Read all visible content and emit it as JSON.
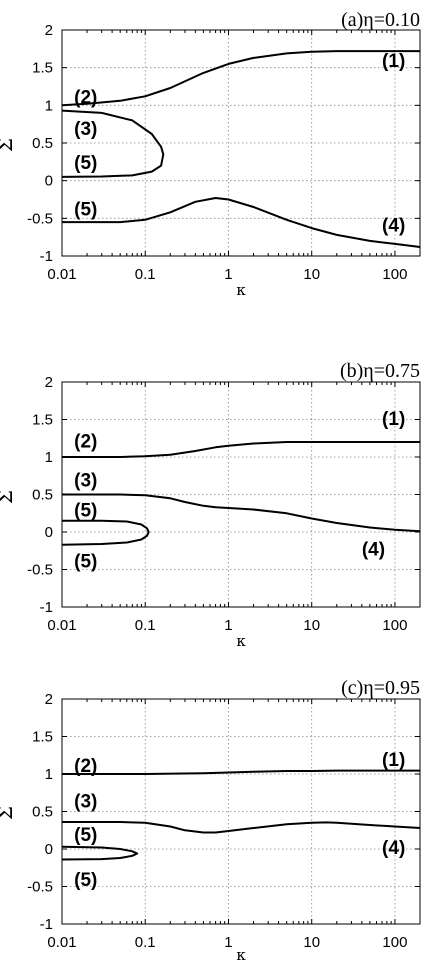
{
  "chart_data": [
    {
      "type": "line",
      "title": "(a)η=0.10",
      "xlabel": "κ",
      "ylabel": "Σ",
      "xscale": "log",
      "xlim": [
        0.01,
        200
      ],
      "ylim": [
        -1,
        2
      ],
      "xticks": [
        0.01,
        0.1,
        1,
        10,
        100
      ],
      "xtick_labels": [
        "0.01",
        "0.1",
        "1",
        "10",
        "100"
      ],
      "yticks": [
        -1,
        -0.5,
        0,
        0.5,
        1,
        1.5,
        2
      ],
      "ytick_labels": [
        "-1",
        "-0.5",
        "0",
        "0.5",
        "1",
        "1.5",
        "2"
      ],
      "grid": true,
      "series": [
        {
          "x": [
            0.01,
            0.02,
            0.05,
            0.1,
            0.2,
            0.5,
            1,
            2,
            5,
            10,
            20,
            50,
            100,
            200
          ],
          "y": [
            1.0,
            1.02,
            1.06,
            1.12,
            1.23,
            1.43,
            1.55,
            1.63,
            1.69,
            1.71,
            1.72,
            1.72,
            1.72,
            1.72
          ]
        },
        {
          "x": [
            0.01,
            0.03,
            0.07,
            0.12,
            0.155,
            0.165,
            0.155,
            0.12,
            0.07,
            0.03,
            0.01
          ],
          "y": [
            0.93,
            0.9,
            0.8,
            0.62,
            0.45,
            0.35,
            0.2,
            0.12,
            0.07,
            0.055,
            0.05
          ]
        },
        {
          "x": [
            0.01,
            0.05,
            0.1,
            0.2,
            0.4,
            0.7,
            1,
            2,
            5,
            10,
            20,
            50,
            100,
            200
          ],
          "y": [
            -0.55,
            -0.55,
            -0.52,
            -0.42,
            -0.28,
            -0.23,
            -0.25,
            -0.35,
            -0.52,
            -0.63,
            -0.72,
            -0.8,
            -0.84,
            -0.88
          ]
        }
      ],
      "annotations": [
        {
          "text": "(1)",
          "x": 70,
          "y": 1.6
        },
        {
          "text": "(2)",
          "x": 0.014,
          "y": 1.12
        },
        {
          "text": "(3)",
          "x": 0.014,
          "y": 0.7
        },
        {
          "text": "(5)",
          "x": 0.014,
          "y": 0.25
        },
        {
          "text": "(5)",
          "x": 0.014,
          "y": -0.37
        },
        {
          "text": "(4)",
          "x": 70,
          "y": -0.58
        }
      ]
    },
    {
      "type": "line",
      "title": "(b)η=0.75",
      "xlabel": "κ",
      "ylabel": "Σ",
      "xscale": "log",
      "xlim": [
        0.01,
        200
      ],
      "ylim": [
        -1,
        2
      ],
      "xticks": [
        0.01,
        0.1,
        1,
        10,
        100
      ],
      "xtick_labels": [
        "0.01",
        "0.1",
        "1",
        "10",
        "100"
      ],
      "yticks": [
        -1,
        -0.5,
        0,
        0.5,
        1,
        1.5,
        2
      ],
      "ytick_labels": [
        "-1",
        "-0.5",
        "0",
        "0.5",
        "1",
        "1.5",
        "2"
      ],
      "grid": true,
      "series": [
        {
          "x": [
            0.01,
            0.05,
            0.1,
            0.2,
            0.4,
            0.7,
            1,
            2,
            5,
            10,
            20,
            50,
            100,
            200
          ],
          "y": [
            1.0,
            1.0,
            1.01,
            1.03,
            1.08,
            1.13,
            1.15,
            1.18,
            1.2,
            1.2,
            1.2,
            1.2,
            1.2,
            1.2
          ]
        },
        {
          "x": [
            0.01,
            0.05,
            0.1,
            0.2,
            0.3,
            0.5,
            0.7,
            1,
            2,
            5,
            10,
            20,
            50,
            100,
            200
          ],
          "y": [
            0.5,
            0.5,
            0.49,
            0.45,
            0.4,
            0.35,
            0.33,
            0.32,
            0.3,
            0.25,
            0.18,
            0.12,
            0.06,
            0.03,
            0.01
          ]
        },
        {
          "x": [
            0.01,
            0.03,
            0.06,
            0.09,
            0.105,
            0.11,
            0.105,
            0.09,
            0.06,
            0.03,
            0.01
          ],
          "y": [
            0.15,
            0.15,
            0.14,
            0.1,
            0.05,
            0.0,
            -0.05,
            -0.1,
            -0.14,
            -0.16,
            -0.17
          ]
        }
      ],
      "annotations": [
        {
          "text": "(1)",
          "x": 70,
          "y": 1.52
        },
        {
          "text": "(2)",
          "x": 0.014,
          "y": 1.22
        },
        {
          "text": "(3)",
          "x": 0.014,
          "y": 0.7
        },
        {
          "text": "(5)",
          "x": 0.014,
          "y": 0.3
        },
        {
          "text": "(5)",
          "x": 0.014,
          "y": -0.38
        },
        {
          "text": "(4)",
          "x": 40,
          "y": -0.22
        }
      ]
    },
    {
      "type": "line",
      "title": "(c)η=0.95",
      "xlabel": "κ",
      "ylabel": "Σ",
      "xscale": "log",
      "xlim": [
        0.01,
        200
      ],
      "ylim": [
        -1,
        2
      ],
      "xticks": [
        0.01,
        0.1,
        1,
        10,
        100
      ],
      "xtick_labels": [
        "0.01",
        "0.1",
        "1",
        "10",
        "100"
      ],
      "yticks": [
        -1,
        -0.5,
        0,
        0.5,
        1,
        1.5,
        2
      ],
      "ytick_labels": [
        "-1",
        "-0.5",
        "0",
        "0.5",
        "1",
        "1.5",
        "2"
      ],
      "grid": true,
      "series": [
        {
          "x": [
            0.01,
            0.1,
            0.5,
            1,
            2,
            5,
            10,
            20,
            50,
            100,
            200
          ],
          "y": [
            1.0,
            1.0,
            1.01,
            1.02,
            1.03,
            1.04,
            1.04,
            1.045,
            1.045,
            1.045,
            1.045
          ]
        },
        {
          "x": [
            0.01,
            0.05,
            0.1,
            0.2,
            0.3,
            0.5,
            0.7,
            1,
            2,
            5,
            10,
            15,
            20,
            50,
            100,
            200
          ],
          "y": [
            0.36,
            0.36,
            0.35,
            0.3,
            0.25,
            0.22,
            0.22,
            0.24,
            0.28,
            0.33,
            0.35,
            0.355,
            0.35,
            0.32,
            0.3,
            0.28
          ]
        },
        {
          "x": [
            0.01,
            0.03,
            0.05,
            0.07,
            0.08,
            0.07,
            0.05,
            0.03,
            0.01
          ],
          "y": [
            0.03,
            0.02,
            0.0,
            -0.03,
            -0.06,
            -0.09,
            -0.12,
            -0.135,
            -0.14
          ]
        }
      ],
      "annotations": [
        {
          "text": "(1)",
          "x": 70,
          "y": 1.2
        },
        {
          "text": "(2)",
          "x": 0.014,
          "y": 1.12
        },
        {
          "text": "(3)",
          "x": 0.014,
          "y": 0.65
        },
        {
          "text": "(5)",
          "x": 0.014,
          "y": 0.2
        },
        {
          "text": "(5)",
          "x": 0.014,
          "y": -0.4
        },
        {
          "text": "(4)",
          "x": 70,
          "y": 0.03
        }
      ]
    }
  ]
}
